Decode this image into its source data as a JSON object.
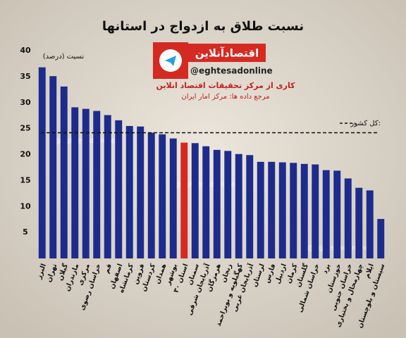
{
  "chart_data": {
    "type": "bar",
    "title": "نسبت طلاق به ازدواج در استانها",
    "y_label": "نسبت (درصد)",
    "brand": {
      "name": "اقتصادآنلاین",
      "handle": "@eghtesadonline",
      "credit": "کاری از مرکز تحقیقات اقتصاد انلاین",
      "source": "مرجع داده ها: مرکز امار ایران"
    },
    "watermark": "@eghtesadonline",
    "categories": [
      "البرز",
      "تهران",
      "گیلان",
      "مازندران",
      "مرکزی",
      "خراسان رضوی",
      "قم",
      "اصفهان",
      "کرمانشاه",
      "قزوین",
      "کردستان",
      "همدان",
      "بوشهر",
      "۳۰ استان",
      "سمنان",
      "آذربایجان شرقی",
      "هرمزگان",
      "زنجان",
      "کهگیلویه و بویراحمد",
      "آذربایجان غربی",
      "لرستان",
      "فارس",
      "اردبیل",
      "کرمان",
      "گلستان",
      "خراسان شمالی",
      "یزد",
      "خوزستان",
      "خراسان جنوبی",
      "چهارمحال و بختیاری",
      "ایلام",
      "سیستان و بلوچستان"
    ],
    "values": [
      36.8,
      35.1,
      33.1,
      29.1,
      28.8,
      28.4,
      27.6,
      26.6,
      25.5,
      25.4,
      24.2,
      23.9,
      23.1,
      22.3,
      22.2,
      21.6,
      20.9,
      20.7,
      20.1,
      19.9,
      18.6,
      18.6,
      18.5,
      18.4,
      18.2,
      18.1,
      17.0,
      16.9,
      15.4,
      13.6,
      13.1,
      7.6
    ],
    "colors": [
      "#1c2b8c",
      "#1c2b8c",
      "#1c2b8c",
      "#1c2b8c",
      "#1c2b8c",
      "#1c2b8c",
      "#1c2b8c",
      "#1c2b8c",
      "#1c2b8c",
      "#1c2b8c",
      "#1c2b8c",
      "#1c2b8c",
      "#1c2b8c",
      "#d42a22",
      "#1c2b8c",
      "#1c2b8c",
      "#1c2b8c",
      "#1c2b8c",
      "#1c2b8c",
      "#1c2b8c",
      "#1c2b8c",
      "#1c2b8c",
      "#1c2b8c",
      "#1c2b8c",
      "#1c2b8c",
      "#1c2b8c",
      "#1c2b8c",
      "#1c2b8c",
      "#1c2b8c",
      "#1c2b8c",
      "#1c2b8c",
      "#1c2b8c"
    ],
    "reference_line": {
      "label": "کل کشور:",
      "value": 24.2
    },
    "ylim": [
      0,
      40
    ],
    "yticks": [
      5,
      10,
      15,
      20,
      25,
      30,
      35,
      40
    ],
    "grid": false
  }
}
